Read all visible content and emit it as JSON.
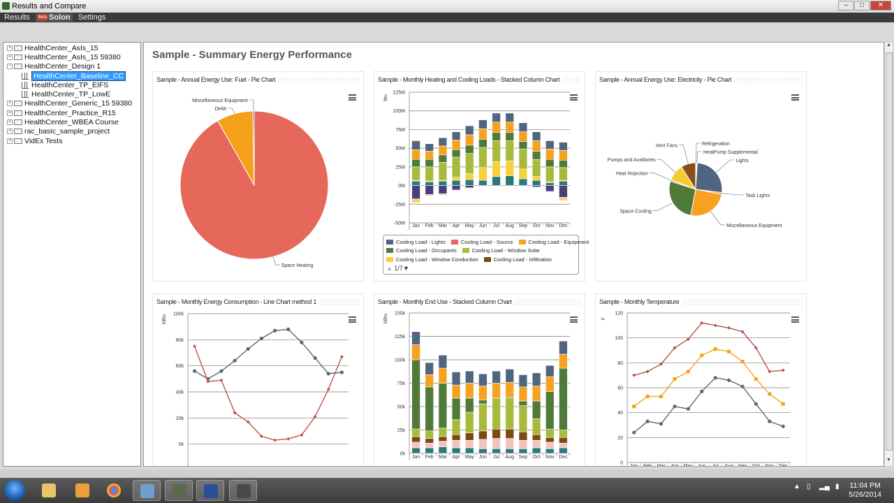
{
  "window": {
    "title": "Results and Compare"
  },
  "menu": {
    "items": [
      "Results",
      "Solon",
      "Settings"
    ],
    "beta_badge": "Beta"
  },
  "tree": {
    "items": [
      {
        "label": "HealthCenter_AsIs_15",
        "type": "folder",
        "expanded": false
      },
      {
        "label": "HealthCenter_AsIs_15 59380",
        "type": "folder",
        "expanded": false
      },
      {
        "label": "HealthCenter_Design 1",
        "type": "folder",
        "expanded": true
      },
      {
        "label": "HealthCenter_Baseline_CC",
        "type": "report",
        "selected": true
      },
      {
        "label": "HealthCenter_TP_EIFS",
        "type": "report"
      },
      {
        "label": "HealthCenter_TP_LowE",
        "type": "report"
      },
      {
        "label": "HealthCenter_Generic_15 59380",
        "type": "folder",
        "expanded": false
      },
      {
        "label": "HealthCenter_Practice_R15",
        "type": "folder",
        "expanded": false
      },
      {
        "label": "HealthCenter_WBEA Course",
        "type": "folder",
        "expanded": false
      },
      {
        "label": "rac_basic_sample_project",
        "type": "folder",
        "expanded": false
      },
      {
        "label": "VidEx Tests",
        "type": "folder",
        "expanded": false
      }
    ]
  },
  "main": {
    "title": "Sample - Summary Energy Performance"
  },
  "chart_data": [
    {
      "type": "pie",
      "title": "Sample - Annual Energy Use: Fuel - Pie Chart",
      "slices": [
        {
          "label": "Space Heating",
          "value": 91.8,
          "color": "#e5685a"
        },
        {
          "label": "DHW",
          "value": 7.9,
          "color": "#f5a11c"
        },
        {
          "label": "Miscellaneous Equipment",
          "value": 0.3,
          "color": "#4f6580"
        }
      ]
    },
    {
      "type": "bar",
      "stacked": true,
      "title": "Sample - Monthly Heating and Cooling Loads - Stacked Column Chart",
      "ylabel": "btu",
      "ylim": [
        -50,
        125
      ],
      "yticks": [
        -50,
        -25,
        0,
        25,
        50,
        75,
        100,
        125
      ],
      "ytick_labels": [
        "-50M",
        "-25M",
        "0M",
        "25M",
        "50M",
        "75M",
        "100M",
        "125M"
      ],
      "categories": [
        "Jan",
        "Feb",
        "Mar",
        "Apr",
        "May",
        "Jun",
        "Jul",
        "Aug",
        "Sep",
        "Oct",
        "Nov",
        "Dec"
      ],
      "series": [
        {
          "color": "#2c7a78",
          "values": [
            6,
            5,
            6,
            7,
            8,
            7,
            12,
            13,
            9,
            7,
            4,
            6
          ]
        },
        {
          "name": "Cooling Load - Window Conduction",
          "color": "#f7d03a",
          "values": [
            1,
            1,
            1,
            4,
            8,
            17,
            20,
            20,
            13,
            5,
            1,
            1
          ]
        },
        {
          "name": "Cooling Load - Window Solar",
          "color": "#a8ba3c",
          "values": [
            18,
            19,
            24,
            27,
            27,
            27,
            28,
            27,
            27,
            23,
            20,
            17
          ]
        },
        {
          "name": "Cooling Load - Occupants",
          "color": "#4f7a3a",
          "values": [
            10,
            10,
            10,
            10,
            11,
            11,
            11,
            11,
            10,
            11,
            10,
            10
          ]
        },
        {
          "name": "Cooling Load - Equipment",
          "color": "#f6a11f",
          "values": [
            13,
            11,
            12,
            13,
            14,
            14,
            14,
            14,
            13,
            14,
            14,
            13
          ]
        },
        {
          "name": "Cooling Load - Lights",
          "color": "#4f6580",
          "values": [
            12,
            10,
            11,
            11,
            12,
            12,
            12,
            12,
            12,
            12,
            11,
            11
          ]
        },
        {
          "color": "#4b3f7a",
          "values": [
            -18,
            -12,
            -11,
            -6,
            -3,
            0,
            0,
            0,
            0,
            -2,
            -8,
            -16
          ]
        },
        {
          "color": "#f2c4c0",
          "values": [
            -1,
            -2,
            -2,
            -1,
            -1,
            0,
            0,
            0,
            0,
            0,
            -1,
            -1
          ]
        },
        {
          "color": "#f7d03a",
          "values": [
            -4,
            0,
            0,
            0,
            0,
            0,
            0,
            0,
            0,
            0,
            0,
            -3
          ]
        }
      ],
      "legend": {
        "items": [
          "Cooling Load - Lights",
          "Cooling Load - Source",
          "Cooling Load - Equipment",
          "Cooling Load - Occupants",
          "Cooling Load - Window Solar",
          "Cooling Load - Window Conduction",
          "Cooling Load - Infiltration"
        ],
        "colors": [
          "#4f6580",
          "#e5685a",
          "#f6a11f",
          "#4f7a3a",
          "#a8ba3c",
          "#f7d03a",
          "#7a4a12"
        ],
        "page": "1/7"
      }
    },
    {
      "type": "pie",
      "title": "Sample - Annual Energy Use: Electricity - Pie Chart",
      "slices": [
        {
          "label": "Refrigeration",
          "value": 0.5,
          "color": "#888888"
        },
        {
          "label": "HeatPump Supplemental",
          "value": 0.5,
          "color": "#e5685a"
        },
        {
          "label": "Lights",
          "value": 26,
          "color": "#4f6580"
        },
        {
          "label": "Task Lights",
          "value": 1,
          "color": "#e5685a"
        },
        {
          "label": "Miscellaneous Equipment",
          "value": 25,
          "color": "#f6a11f"
        },
        {
          "label": "Space Cooling",
          "value": 27,
          "color": "#4f7a3a"
        },
        {
          "label": "Heat Rejection",
          "value": 1,
          "color": "#a8ba3c"
        },
        {
          "label": "Pumps and Auxiliaries",
          "value": 10,
          "color": "#f7c932"
        },
        {
          "label": "Vent Fans",
          "value": 9,
          "color": "#8a4f16"
        }
      ]
    },
    {
      "type": "line",
      "title": "Sample - Monthly Energy Consumption - Line Chart method 1",
      "ylabel": "kBtu",
      "ylim": [
        -20,
        100
      ],
      "yticks": [
        0,
        20,
        40,
        60,
        80,
        100
      ],
      "ytick_labels": [
        "0k",
        "20k",
        "40k",
        "60k",
        "80k",
        "100k"
      ],
      "series": [
        {
          "color": "#546a7b",
          "marker": "circle",
          "values": [
            56,
            50,
            56,
            64,
            73,
            81,
            87,
            88,
            78,
            66,
            54,
            55
          ]
        },
        {
          "color": "#c1524a",
          "marker": "diamond",
          "values": [
            75,
            48,
            49,
            24,
            17,
            6,
            3,
            4,
            7,
            21,
            42,
            67
          ]
        }
      ]
    },
    {
      "type": "bar",
      "stacked": true,
      "title": "Sample - Monthly End Use - Stacked Column Chart",
      "ylabel": "kBtu",
      "ylim": [
        0,
        150
      ],
      "yticks": [
        0,
        25,
        50,
        75,
        100,
        125,
        150
      ],
      "ytick_labels": [
        "0k",
        "25k",
        "50k",
        "75k",
        "100k",
        "125k",
        "150k"
      ],
      "categories": [
        "Jan",
        "Feb",
        "Mar",
        "Apr",
        "May",
        "Jun",
        "Jul",
        "Aug",
        "Sep",
        "Oct",
        "Nov",
        "Dec"
      ],
      "series": [
        {
          "color": "#2c7a78",
          "values": [
            6,
            6,
            7,
            6,
            6,
            5,
            5,
            5,
            5,
            6,
            5,
            6
          ]
        },
        {
          "color": "#f2c4c0",
          "values": [
            6,
            5,
            6,
            8,
            8,
            10,
            11,
            11,
            9,
            8,
            7,
            5
          ]
        },
        {
          "color": "#7a4a12",
          "values": [
            6,
            5,
            5,
            6,
            8,
            9,
            10,
            10,
            9,
            6,
            5,
            6
          ]
        },
        {
          "color": "#a8ba3c",
          "values": [
            8,
            8,
            9,
            16,
            22,
            29,
            33,
            33,
            28,
            17,
            9,
            8
          ]
        },
        {
          "color": "#4f7a3a",
          "values": [
            74,
            47,
            48,
            23,
            15,
            4,
            0,
            1,
            5,
            19,
            40,
            66
          ]
        },
        {
          "color": "#f6a11f",
          "values": [
            16,
            13,
            16,
            14,
            16,
            15,
            16,
            16,
            15,
            16,
            16,
            15
          ]
        },
        {
          "color": "#4f6580",
          "values": [
            14,
            13,
            14,
            14,
            13,
            13,
            13,
            14,
            13,
            14,
            12,
            14
          ]
        }
      ]
    },
    {
      "type": "line",
      "title": "Sample - Monthly Temperature",
      "ylabel": "F",
      "ylim": [
        0,
        120
      ],
      "yticks": [
        0,
        20,
        40,
        60,
        80,
        100,
        120
      ],
      "ytick_labels": [
        "0",
        "20",
        "40",
        "60",
        "80",
        "100",
        "120"
      ],
      "categories": [
        "Jan",
        "Feb",
        "Mar",
        "Apr",
        "May",
        "Jun",
        "Jul",
        "Aug",
        "Sep",
        "Oct",
        "Nov",
        "Dec"
      ],
      "series": [
        {
          "color": "#b5514d",
          "marker": "diamond",
          "values": [
            70,
            73,
            79,
            92,
            99,
            112,
            110,
            108,
            105,
            92,
            73,
            74
          ]
        },
        {
          "color": "#f2a516",
          "marker": "square",
          "values": [
            45,
            53,
            53,
            67,
            73,
            86,
            91,
            89,
            81,
            67,
            55,
            47
          ]
        },
        {
          "color": "#5b6b78",
          "marker": "circle",
          "values": [
            24,
            33,
            31,
            45,
            43,
            57,
            68,
            66,
            61,
            47,
            33,
            29
          ]
        }
      ]
    }
  ],
  "taskbar": {
    "time": "11:04 PM",
    "date": "5/26/2014"
  }
}
